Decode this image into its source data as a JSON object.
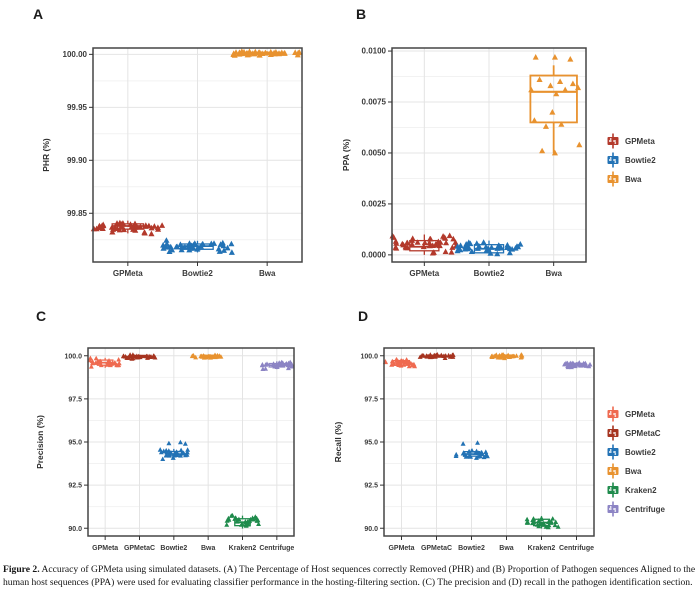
{
  "figure": {
    "caption_label": "Figure 2.",
    "caption_text": "Accuracy of GPMeta using simulated datasets. (A) The Percentage of Host sequences correctly Removed (PHR) and (B) Proportion of Pathogen sequences Aligned to the human host sequences (PPA) were used for evaluating classifier performance in the hosting-filtering section. (C) The precision and (D) recall in the pathogen identification section."
  },
  "colors": {
    "brick": "#b3392b",
    "dark_brick": "#a63420",
    "salmon": "#ef6a50",
    "blue": "#2272b5",
    "orange": "#e8922f",
    "green": "#1f8b4c",
    "purple": "#8c84c4",
    "axis_text": "#3a3a3a",
    "panel_border": "#454545",
    "grid_major": "#e4e4e4",
    "grid_minor": "#f2f2f2"
  },
  "chart_data": [
    {
      "panel_label": "A",
      "type": "strip-box",
      "ylabel": "PHR (%)",
      "categories": [
        "GPMeta",
        "Bowtie2",
        "Bwa"
      ],
      "ylim": [
        99.804,
        100.006
      ],
      "yticks": [
        {
          "v": 99.85,
          "label": "99.85"
        },
        {
          "v": 99.9,
          "label": "99.90"
        },
        {
          "v": 99.95,
          "label": "99.95"
        },
        {
          "v": 100.0,
          "label": "100.00"
        }
      ],
      "series": [
        {
          "name": "GPMeta",
          "color": "#b3392b",
          "range": [
            99.83,
            99.843
          ],
          "n": 44,
          "box": {
            "lo": 99.831,
            "q1": 99.835,
            "med": 99.838,
            "q3": 99.84,
            "hi": 99.843
          }
        },
        {
          "name": "Bowtie2",
          "color": "#2272b5",
          "range": [
            99.812,
            99.825
          ],
          "n": 40,
          "box": {
            "lo": 99.813,
            "q1": 99.816,
            "med": 99.819,
            "q3": 99.821,
            "hi": 99.824
          }
        },
        {
          "name": "Bwa",
          "color": "#e8922f",
          "range": [
            99.999,
            100.003
          ],
          "n": 42,
          "box": {
            "lo": 99.999,
            "q1": 100.0,
            "med": 100.001,
            "q3": 100.002,
            "hi": 100.003
          }
        }
      ]
    },
    {
      "panel_label": "B",
      "type": "strip-box",
      "ylabel": "PPA (%)",
      "categories": [
        "GPMeta",
        "Bowtie2",
        "Bwa"
      ],
      "ylim": [
        -0.00035,
        0.01015
      ],
      "yticks": [
        {
          "v": 0.0,
          "label": "0.0000"
        },
        {
          "v": 0.0025,
          "label": "0.0025"
        },
        {
          "v": 0.005,
          "label": "0.0050"
        },
        {
          "v": 0.0075,
          "label": "0.0075"
        },
        {
          "v": 0.01,
          "label": "0.0100"
        }
      ],
      "series": [
        {
          "name": "GPMeta",
          "color": "#b3392b",
          "range": [
            0.0,
            0.0011
          ],
          "n": 42,
          "box": {
            "lo": 0.0,
            "q1": 0.0002,
            "med": 0.0004,
            "q3": 0.0007,
            "hi": 0.001
          }
        },
        {
          "name": "Bowtie2",
          "color": "#2272b5",
          "range": [
            0.0,
            0.0007
          ],
          "n": 38,
          "box": {
            "lo": 0.0,
            "q1": 0.0001,
            "med": 0.0003,
            "q3": 0.0005,
            "hi": 0.0007
          }
        },
        {
          "name": "Bwa",
          "color": "#e8922f",
          "box_width": 0.72,
          "box": {
            "lo": 0.005,
            "q1": 0.0065,
            "med": 0.008,
            "q3": 0.0088,
            "hi": 0.0093
          },
          "points": [
            [
              -0.28,
              0.0097
            ],
            [
              0.02,
              0.0097
            ],
            [
              0.26,
              0.0096
            ],
            [
              -0.22,
              0.0086
            ],
            [
              0.1,
              0.0085
            ],
            [
              0.3,
              0.0084
            ],
            [
              -0.05,
              0.0083
            ],
            [
              0.38,
              0.0082
            ],
            [
              -0.35,
              0.0081
            ],
            [
              0.18,
              0.0081
            ],
            [
              0.04,
              0.0079
            ],
            [
              -0.02,
              0.007
            ],
            [
              -0.3,
              0.0066
            ],
            [
              0.12,
              0.0064
            ],
            [
              -0.12,
              0.0063
            ],
            [
              0.4,
              0.0054
            ],
            [
              -0.18,
              0.0051
            ],
            [
              0.02,
              0.005
            ]
          ]
        }
      ]
    },
    {
      "panel_label": "C",
      "type": "strip-box",
      "ylabel": "Precision (%)",
      "categories": [
        "GPMeta",
        "GPMetaC",
        "Bowtie2",
        "Bwa",
        "Kraken2",
        "Centrifuge"
      ],
      "ylim": [
        89.55,
        100.45
      ],
      "yticks": [
        {
          "v": 90.0,
          "label": "90.0"
        },
        {
          "v": 92.5,
          "label": "92.5"
        },
        {
          "v": 95.0,
          "label": "95.0"
        },
        {
          "v": 97.5,
          "label": "97.5"
        },
        {
          "v": 100.0,
          "label": "100.0"
        }
      ],
      "series": [
        {
          "name": "GPMeta",
          "color": "#ef6a50",
          "range": [
            99.25,
            99.9
          ],
          "n": 28,
          "box": {
            "lo": 99.3,
            "q1": 99.45,
            "med": 99.6,
            "q3": 99.75,
            "hi": 99.88
          }
        },
        {
          "name": "GPMetaC",
          "color": "#a63420",
          "range": [
            99.82,
            100.08
          ],
          "n": 28,
          "box": {
            "lo": 99.84,
            "q1": 99.9,
            "med": 99.97,
            "q3": 100.02,
            "hi": 100.06
          }
        },
        {
          "name": "Bowtie2",
          "color": "#2272b5",
          "range": [
            94.0,
            94.65
          ],
          "n": 26,
          "extra_points": [
            [
              -0.15,
              94.92
            ],
            [
              0.2,
              94.98
            ],
            [
              0.35,
              94.9
            ]
          ],
          "box": {
            "lo": 94.05,
            "q1": 94.2,
            "med": 94.3,
            "q3": 94.45,
            "hi": 94.6
          }
        },
        {
          "name": "Bwa",
          "color": "#e8922f",
          "range": [
            99.85,
            100.08
          ],
          "n": 26,
          "box": {
            "lo": 99.87,
            "q1": 99.93,
            "med": 99.98,
            "q3": 100.03,
            "hi": 100.07
          }
        },
        {
          "name": "Kraken2",
          "color": "#1f8b4c",
          "range": [
            89.95,
            90.8
          ],
          "n": 30,
          "box": {
            "lo": 89.98,
            "q1": 90.15,
            "med": 90.35,
            "q3": 90.55,
            "hi": 90.73
          }
        },
        {
          "name": "Centrifuge",
          "color": "#8c84c4",
          "range": [
            99.2,
            99.7
          ],
          "n": 28,
          "box": {
            "lo": 99.22,
            "q1": 99.35,
            "med": 99.45,
            "q3": 99.55,
            "hi": 99.68
          }
        }
      ]
    },
    {
      "panel_label": "D",
      "type": "strip-box",
      "ylabel": "Recall (%)",
      "categories": [
        "GPMeta",
        "GPMetaC",
        "Bowtie2",
        "Bwa",
        "Kraken2",
        "Centrifuge"
      ],
      "ylim": [
        89.55,
        100.45
      ],
      "yticks": [
        {
          "v": 90.0,
          "label": "90.0"
        },
        {
          "v": 92.5,
          "label": "92.5"
        },
        {
          "v": 95.0,
          "label": "95.0"
        },
        {
          "v": 97.5,
          "label": "97.5"
        },
        {
          "v": 100.0,
          "label": "100.0"
        }
      ],
      "series": [
        {
          "name": "GPMeta",
          "color": "#ef6a50",
          "range": [
            99.3,
            99.85
          ],
          "n": 28,
          "box": {
            "lo": 99.32,
            "q1": 99.45,
            "med": 99.58,
            "q3": 99.72,
            "hi": 99.83
          }
        },
        {
          "name": "GPMetaC",
          "color": "#a63420",
          "range": [
            99.85,
            100.08
          ],
          "n": 28,
          "box": {
            "lo": 99.86,
            "q1": 99.92,
            "med": 99.98,
            "q3": 100.03,
            "hi": 100.07
          }
        },
        {
          "name": "Bowtie2",
          "color": "#2272b5",
          "range": [
            94.0,
            94.6
          ],
          "n": 26,
          "extra_points": [
            [
              -0.25,
              94.9
            ],
            [
              0.18,
              94.95
            ]
          ],
          "box": {
            "lo": 94.04,
            "q1": 94.18,
            "med": 94.3,
            "q3": 94.44,
            "hi": 94.58
          }
        },
        {
          "name": "Bwa",
          "color": "#e8922f",
          "range": [
            99.85,
            100.08
          ],
          "n": 26,
          "box": {
            "lo": 99.87,
            "q1": 99.93,
            "med": 99.99,
            "q3": 100.04,
            "hi": 100.07
          }
        },
        {
          "name": "Kraken2",
          "color": "#1f8b4c",
          "range": [
            89.95,
            90.75
          ],
          "n": 30,
          "box": {
            "lo": 89.98,
            "q1": 90.15,
            "med": 90.33,
            "q3": 90.52,
            "hi": 90.7
          }
        },
        {
          "name": "Centrifuge",
          "color": "#8c84c4",
          "range": [
            99.28,
            99.65
          ],
          "n": 28,
          "box": {
            "lo": 99.3,
            "q1": 99.4,
            "med": 99.48,
            "q3": 99.56,
            "hi": 99.63
          }
        }
      ]
    }
  ],
  "legends": {
    "filtering": {
      "items": [
        {
          "label": "GPMeta",
          "color": "#b3392b"
        },
        {
          "label": "Bowtie2",
          "color": "#2272b5"
        },
        {
          "label": "Bwa",
          "color": "#e8922f"
        }
      ]
    },
    "identification": {
      "items": [
        {
          "label": "GPMeta",
          "color": "#ef6a50"
        },
        {
          "label": "GPMetaC",
          "color": "#a63420"
        },
        {
          "label": "Bowtie2",
          "color": "#2272b5"
        },
        {
          "label": "Bwa",
          "color": "#e8922f"
        },
        {
          "label": "Kraken2",
          "color": "#1f8b4c"
        },
        {
          "label": "Centrifuge",
          "color": "#8c84c4"
        }
      ]
    }
  }
}
